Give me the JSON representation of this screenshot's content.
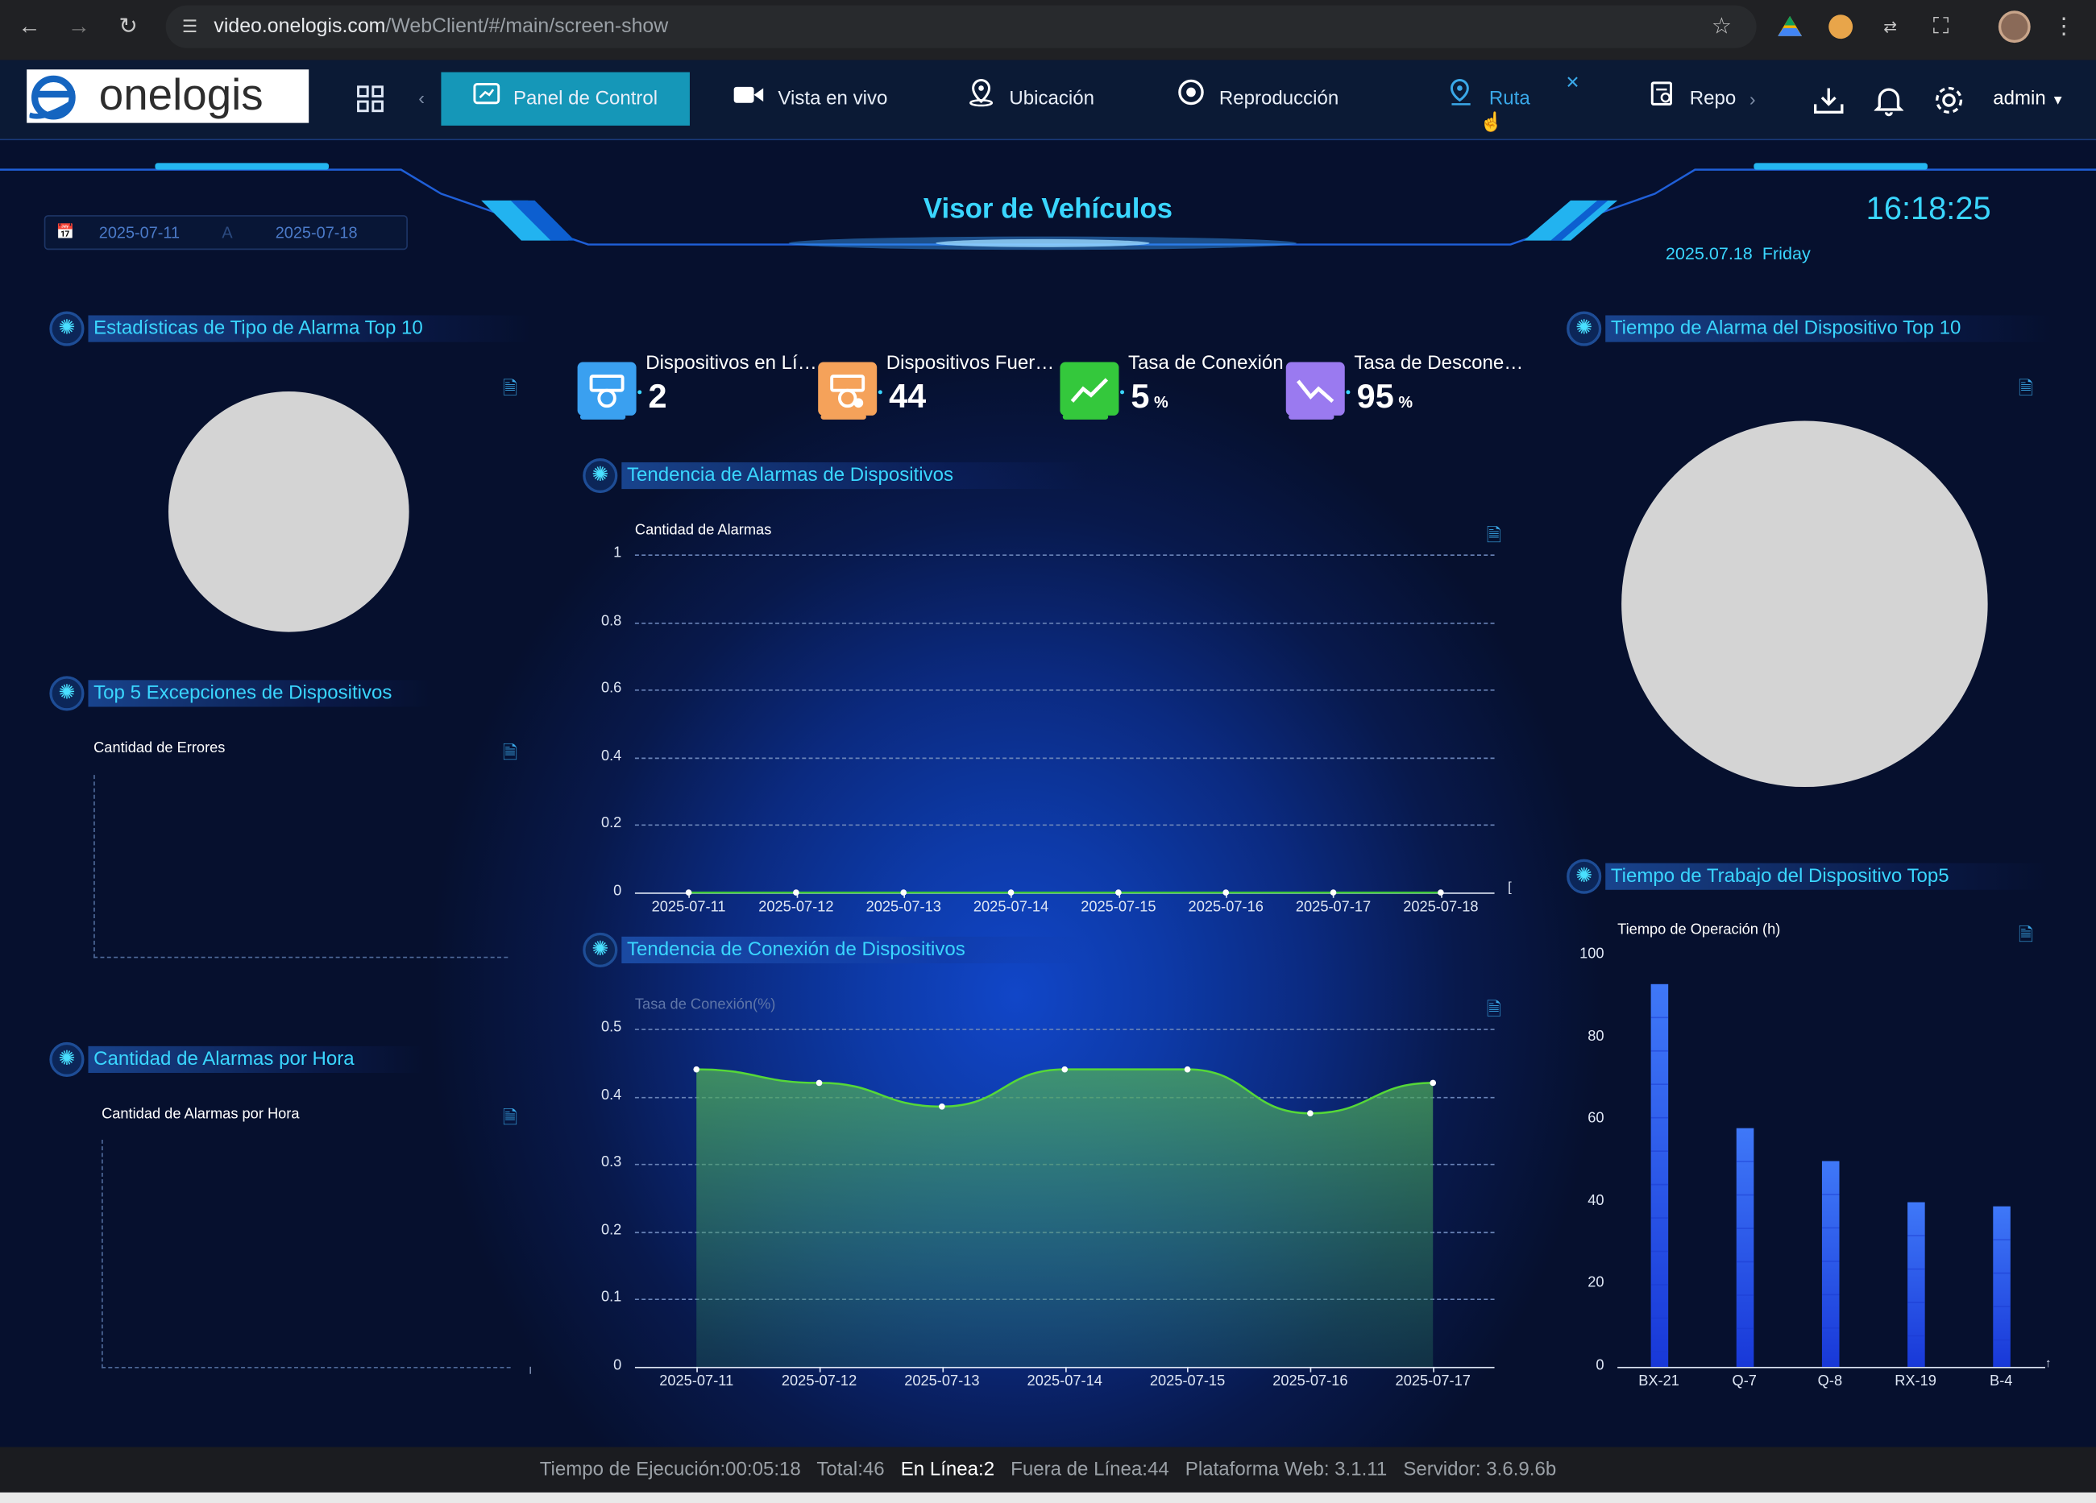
{
  "browser": {
    "url_host": "video.onelogis.com",
    "url_path": "/WebClient/#/main/screen-show"
  },
  "nav": {
    "logo_text": "onelogis",
    "items": [
      {
        "label": "Panel de Control",
        "icon": "dashboard-icon"
      },
      {
        "label": "Vista en vivo",
        "icon": "video-camera-icon"
      },
      {
        "label": "Ubicación",
        "icon": "location-pin-icon"
      },
      {
        "label": "Reproducción",
        "icon": "playback-icon"
      },
      {
        "label": "Ruta",
        "icon": "route-pin-icon"
      },
      {
        "label": "Repo",
        "icon": "report-icon"
      }
    ],
    "user": "admin"
  },
  "header": {
    "title": "Visor de Vehículos",
    "date_from": "2025-07-11",
    "date_sep": "A",
    "date_to": "2025-07-18",
    "time": "16:18:25",
    "date": "2025.07.18",
    "weekday": "Friday"
  },
  "kpis": [
    {
      "label": "Dispositivos en Lí…",
      "value": "2",
      "unit": "",
      "icon": "camera-online-icon",
      "color": "#3aa0f0"
    },
    {
      "label": "Dispositivos Fuer…",
      "value": "44",
      "unit": "",
      "icon": "camera-offline-icon",
      "color": "#f5a25a"
    },
    {
      "label": "Tasa de Conexión",
      "value": "5",
      "unit": "%",
      "icon": "trend-up-icon",
      "color": "#34c83c"
    },
    {
      "label": "Tasa de Descone…",
      "value": "95",
      "unit": "%",
      "icon": "trend-down-icon",
      "color": "#9a7af0"
    }
  ],
  "panels": {
    "alarm_type_top10": {
      "title": "Estadísticas de Tipo de Alarma Top 10"
    },
    "top5_exceptions": {
      "title": "Top 5 Excepciones de Dispositivos",
      "ylabel": "Cantidad de Errores"
    },
    "alarms_per_hour": {
      "title": "Cantidad de Alarmas por Hora",
      "ylabel": "Cantidad de Alarmas por Hora"
    },
    "alarm_trend": {
      "title": "Tendencia de Alarmas de Dispositivos"
    },
    "connection_trend": {
      "title": "Tendencia de Conexión de Dispositivos"
    },
    "alarm_time_top10": {
      "title": "Tiempo de Alarma del Dispositivo Top 10"
    },
    "work_time_top5": {
      "title": "Tiempo de Trabajo del Dispositivo Top5"
    }
  },
  "chart_data": [
    {
      "type": "line",
      "ylabel": "Cantidad de Alarmas",
      "x": [
        "2025-07-11",
        "2025-07-12",
        "2025-07-13",
        "2025-07-14",
        "2025-07-15",
        "2025-07-16",
        "2025-07-17",
        "2025-07-18"
      ],
      "yticks": [
        "1",
        "0.8",
        "0.6",
        "0.4",
        "0.2",
        "0"
      ],
      "ylim": [
        0,
        1
      ],
      "series": [
        {
          "values": [
            0,
            0,
            0,
            0,
            0,
            0,
            0,
            0
          ],
          "color": "#3ec83c"
        }
      ],
      "grid": true
    },
    {
      "type": "area",
      "ylabel": "Tasa de Conexión(%)",
      "x": [
        "2025-07-11",
        "2025-07-12",
        "2025-07-13",
        "2025-07-14",
        "2025-07-15",
        "2025-07-16",
        "2025-07-17"
      ],
      "yticks": [
        "0.5",
        "0.4",
        "0.3",
        "0.2",
        "0.1",
        "0"
      ],
      "ylim": [
        0,
        0.5
      ],
      "series": [
        {
          "values": [
            0.44,
            0.42,
            0.385,
            0.44,
            0.44,
            0.375,
            0.42
          ],
          "color": "#56d838"
        }
      ],
      "grid": true
    },
    {
      "type": "bar",
      "ylabel": "Tiempo de Operación (h)",
      "categories": [
        "BX-21",
        "Q-7",
        "Q-8",
        "RX-19",
        "B-4"
      ],
      "values": [
        93,
        58,
        50,
        40,
        39
      ],
      "yticks": [
        "100",
        "80",
        "60",
        "40",
        "20",
        "0"
      ],
      "ylim": [
        0,
        100
      ],
      "color": "#2f5ef0"
    }
  ],
  "footer": {
    "runtime": "Tiempo de Ejecución:00:05:18",
    "total": "Total:46",
    "online": "En Línea:2",
    "offline": "Fuera de Línea:44",
    "web_platform": "Plataforma Web: 3.1.11",
    "server": "Servidor: 3.6.9.6b"
  }
}
